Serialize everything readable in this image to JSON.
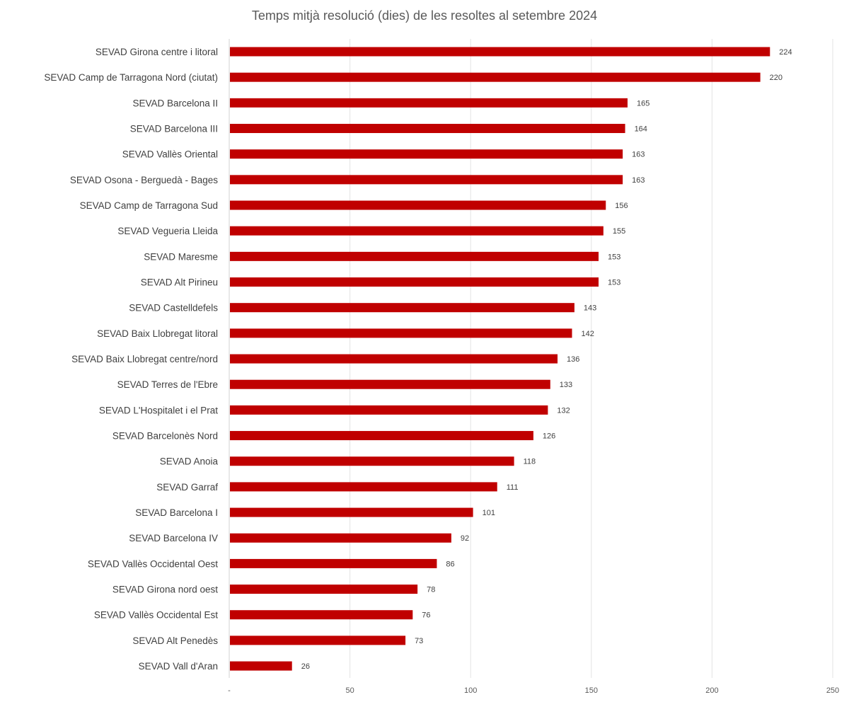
{
  "chart_data": {
    "type": "bar",
    "orientation": "horizontal",
    "title": "Temps mitjà resolució (dies) de les resoltes al setembre 2024",
    "xlabel": "",
    "ylabel": "",
    "xlim": [
      0,
      250
    ],
    "ticks": [
      0,
      50,
      100,
      150,
      200,
      250
    ],
    "tick_labels": [
      "-",
      "50",
      "100",
      "150",
      "200",
      "250"
    ],
    "grid": true,
    "bar_color": "#C00000",
    "categories": [
      "SEVAD Girona centre i litoral",
      "SEVAD Camp de Tarragona Nord (ciutat)",
      "SEVAD Barcelona II",
      "SEVAD Barcelona III",
      "SEVAD Vallès Oriental",
      "SEVAD Osona - Berguedà - Bages",
      "SEVAD Camp de Tarragona Sud",
      "SEVAD Vegueria Lleida",
      "SEVAD Maresme",
      "SEVAD Alt Pirineu",
      "SEVAD Castelldefels",
      "SEVAD Baix Llobregat litoral",
      "SEVAD Baix Llobregat centre/nord",
      "SEVAD Terres de l'Ebre",
      "SEVAD L'Hospitalet i el Prat",
      "SEVAD Barcelonès Nord",
      "SEVAD Anoia",
      "SEVAD Garraf",
      "SEVAD Barcelona I",
      "SEVAD Barcelona IV",
      "SEVAD Vallès Occidental Oest",
      "SEVAD Girona nord oest",
      "SEVAD Vallès Occidental Est",
      "SEVAD Alt Penedès",
      "SEVAD Vall d'Aran"
    ],
    "values": [
      224,
      220,
      165,
      164,
      163,
      163,
      156,
      155,
      153,
      153,
      143,
      142,
      136,
      133,
      132,
      126,
      118,
      111,
      101,
      92,
      86,
      78,
      76,
      73,
      26
    ]
  }
}
